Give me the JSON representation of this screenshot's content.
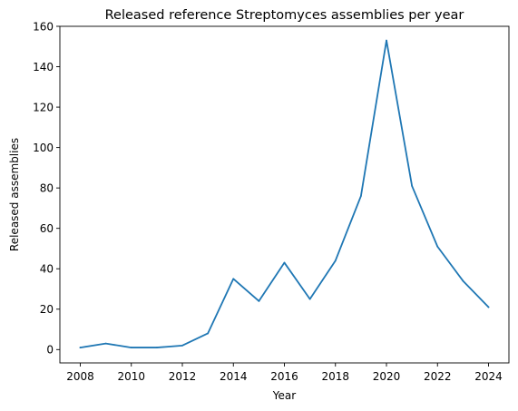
{
  "chart_data": {
    "type": "line",
    "title": "Released reference Streptomyces assemblies per year",
    "xlabel": "Year",
    "ylabel": "Released assemblies",
    "x": [
      2008,
      2009,
      2010,
      2011,
      2012,
      2013,
      2014,
      2015,
      2016,
      2017,
      2018,
      2019,
      2020,
      2021,
      2022,
      2023,
      2024
    ],
    "series": [
      {
        "values": [
          1,
          3,
          1,
          1,
          2,
          8,
          35,
          24,
          43,
          25,
          44,
          76,
          153,
          81,
          51,
          34,
          21
        ],
        "color": "#1f77b4"
      }
    ],
    "xlim": [
      2007.2,
      2024.8
    ],
    "ylim": [
      -6.6,
      160
    ],
    "x_ticks": [
      "2008",
      "2010",
      "2012",
      "2014",
      "2016",
      "2018",
      "2020",
      "2022",
      "2024"
    ],
    "y_ticks": [
      "0",
      "20",
      "40",
      "60",
      "80",
      "100",
      "120",
      "140",
      "160"
    ],
    "grid": false,
    "legend": "none"
  }
}
